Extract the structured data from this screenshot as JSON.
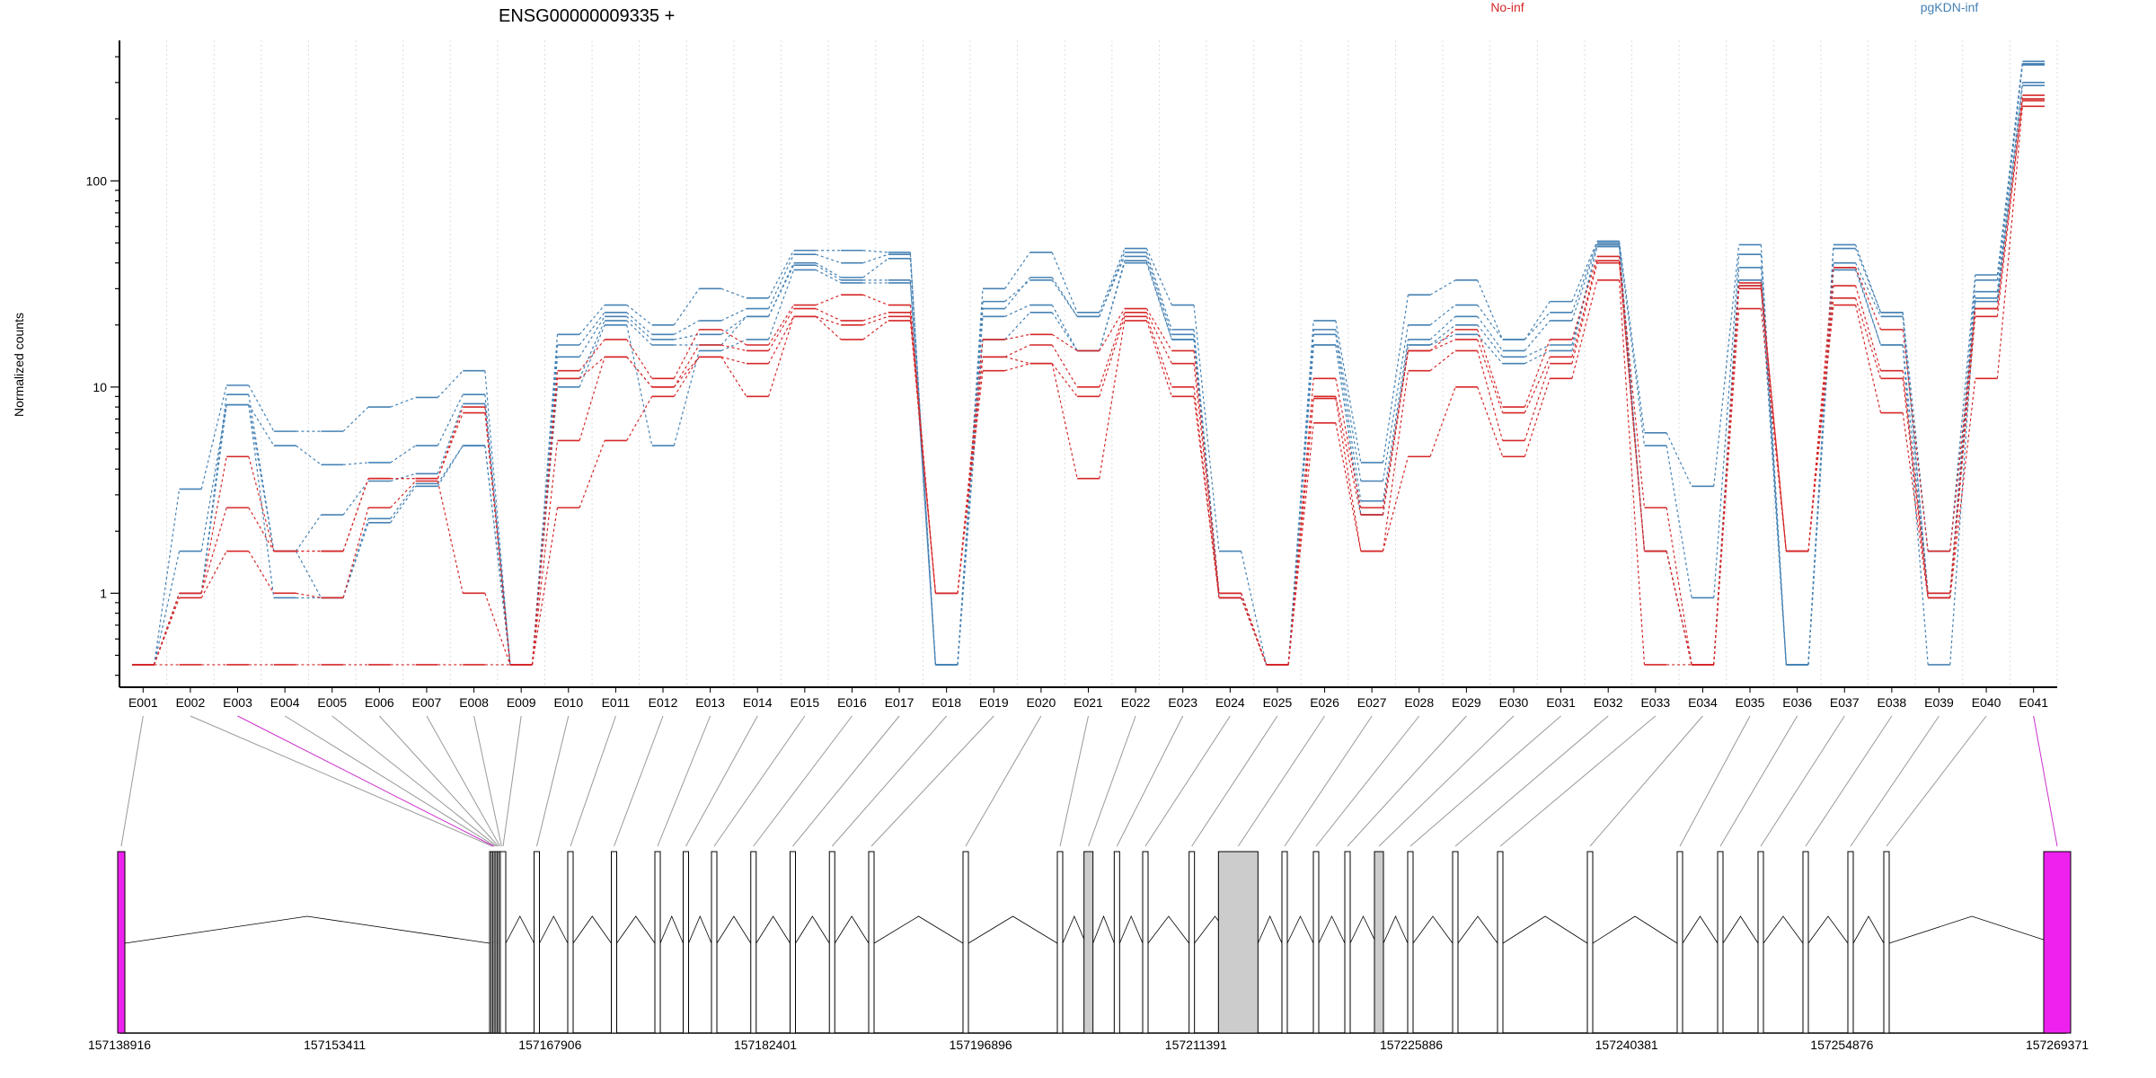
{
  "chart_data": {
    "type": "line",
    "title": "ENSG00000009335 +",
    "ylabel": "Normalized counts",
    "xlabel": "",
    "yscale": "log",
    "ylim": [
      0.35,
      480
    ],
    "yticks": [
      1,
      10,
      100
    ],
    "ytick_labels": [
      "1",
      "10",
      "100"
    ],
    "grid": "vertical dotted lines at exon boundaries",
    "legend": {
      "placement": "top",
      "entries": [
        {
          "label": "No-inf",
          "color": "#d62728"
        },
        {
          "label": "pgKDN-inf",
          "color": "#4682b4"
        }
      ]
    },
    "exons": [
      "E001",
      "E002",
      "E003",
      "E004",
      "E005",
      "E006",
      "E007",
      "E008",
      "E009",
      "E010",
      "E011",
      "E012",
      "E013",
      "E014",
      "E015",
      "E016",
      "E017",
      "E018",
      "E019",
      "E020",
      "E021",
      "E022",
      "E023",
      "E024",
      "E025",
      "E026",
      "E027",
      "E028",
      "E029",
      "E030",
      "E031",
      "E032",
      "E033",
      "E034",
      "E035",
      "E036",
      "E037",
      "E038",
      "E039",
      "E040",
      "E041"
    ],
    "series": [
      {
        "group": "pgKDN-inf",
        "color": "#4682b4",
        "values": [
          0.45,
          3.2,
          10.2,
          6.1,
          6.1,
          8.0,
          8.9,
          12,
          0.45,
          18,
          25,
          20,
          30,
          27,
          46,
          46,
          45,
          0.45,
          30,
          45,
          23,
          47,
          25,
          1.6,
          0.45,
          21,
          4.3,
          28,
          33,
          17,
          26,
          51,
          6.0,
          3.3,
          49,
          0.45,
          49,
          23,
          1.6,
          35,
          380
        ]
      },
      {
        "group": "pgKDN-inf",
        "color": "#4682b4",
        "values": [
          0.45,
          1.0,
          8.2,
          5.2,
          4.2,
          4.3,
          5.2,
          9.2,
          0.45,
          16,
          23,
          18,
          21,
          24,
          44,
          40,
          44,
          0.45,
          26,
          33,
          22,
          45,
          19,
          1.0,
          0.45,
          19,
          3.5,
          20,
          25,
          17,
          23,
          50,
          5.2,
          0.95,
          44,
          0.45,
          47,
          23,
          1.0,
          33,
          370
        ]
      },
      {
        "group": "pgKDN-inf",
        "color": "#4682b4",
        "values": [
          0.45,
          1.0,
          9.2,
          1.6,
          2.4,
          3.5,
          3.8,
          8.3,
          0.45,
          14,
          22,
          17,
          18,
          22,
          40,
          34,
          42,
          0.45,
          24,
          34,
          22,
          43,
          18,
          1.0,
          0.45,
          18,
          2.8,
          17,
          22,
          15,
          21,
          49,
          1.6,
          0.45,
          38,
          0.45,
          40,
          22,
          1.0,
          29,
          365
        ]
      },
      {
        "group": "pgKDN-inf",
        "color": "#4682b4",
        "values": [
          0.45,
          1.6,
          8.2,
          1.6,
          0.95,
          2.3,
          3.4,
          5.2,
          0.45,
          11,
          21,
          16,
          16,
          22,
          39,
          33,
          33,
          0.45,
          22,
          25,
          15,
          41,
          17,
          0.95,
          0.45,
          16,
          2.4,
          16,
          20,
          14,
          16,
          48,
          1.6,
          0.45,
          33,
          0.45,
          38,
          16,
          0.95,
          27,
          300
        ]
      },
      {
        "group": "pgKDN-inf",
        "color": "#4682b4",
        "values": [
          0.45,
          1.0,
          8.2,
          0.95,
          0.95,
          2.2,
          3.3,
          5.2,
          0.45,
          10,
          20,
          5.2,
          15,
          17,
          37,
          32,
          32,
          0.45,
          17,
          23,
          15,
          40,
          17,
          0.95,
          0.45,
          16,
          2.4,
          16,
          18,
          13,
          15,
          48,
          1.6,
          0.45,
          31,
          0.45,
          37,
          16,
          0.45,
          26,
          290
        ]
      },
      {
        "group": "No-inf",
        "color": "#d62728",
        "values": [
          0.45,
          1.0,
          4.6,
          1.6,
          1.6,
          3.6,
          3.6,
          8.0,
          0.45,
          12,
          17,
          11,
          19,
          16,
          25,
          28,
          25,
          1.0,
          17,
          18,
          15,
          24,
          15,
          1.0,
          0.45,
          11,
          2.6,
          15,
          19,
          8.0,
          17,
          43,
          2.6,
          0.45,
          32,
          1.6,
          38,
          19,
          1.6,
          24,
          260
        ]
      },
      {
        "group": "No-inf",
        "color": "#d62728",
        "values": [
          0.45,
          1.0,
          2.6,
          1.6,
          1.6,
          3.6,
          3.6,
          7.5,
          0.45,
          11,
          14,
          10,
          16,
          15,
          24,
          21,
          23,
          1.0,
          14,
          16,
          10,
          23,
          13,
          1.0,
          0.45,
          9.0,
          2.4,
          15,
          17,
          7.5,
          14,
          41,
          1.6,
          0.45,
          31,
          1.6,
          31,
          12,
          1.0,
          24,
          250
        ]
      },
      {
        "group": "No-inf",
        "color": "#d62728",
        "values": [
          0.45,
          0.95,
          1.6,
          1.0,
          0.95,
          2.6,
          3.5,
          1.0,
          0.45,
          5.5,
          14,
          10,
          14,
          13,
          22,
          20,
          22,
          1.0,
          14,
          13,
          9.0,
          22,
          10,
          0.95,
          0.45,
          8.8,
          1.6,
          12,
          15,
          5.5,
          13,
          40,
          1.6,
          0.45,
          30,
          1.6,
          27,
          11,
          0.95,
          22,
          245
        ]
      },
      {
        "group": "No-inf",
        "color": "#d62728",
        "values": [
          0.45,
          0.45,
          0.45,
          0.45,
          0.45,
          0.45,
          0.45,
          0.45,
          0.45,
          2.6,
          5.5,
          9.0,
          14,
          9.0,
          22,
          17,
          21,
          1.0,
          12,
          13,
          3.6,
          21,
          9.0,
          0.95,
          0.45,
          6.7,
          1.6,
          4.6,
          10,
          4.6,
          11,
          33,
          0.45,
          0.45,
          24,
          1.6,
          25,
          7.5,
          0.95,
          11,
          230
        ]
      }
    ],
    "gene_model": {
      "coordinates": [
        "157138916",
        "157153411",
        "157167906",
        "157182401",
        "157196896",
        "157211391",
        "157225886",
        "157240381",
        "157254876",
        "157269371"
      ],
      "exon_fill": [
        "magenta",
        "none",
        "none",
        "none",
        "none",
        "none",
        "none",
        "none",
        "none",
        "none",
        "none",
        "none",
        "none",
        "none",
        "none",
        "none",
        "none",
        "none",
        "none",
        "none",
        "none",
        "grey",
        "none",
        "none",
        "none",
        "grey",
        "none",
        "none",
        "none",
        "grey",
        "none",
        "none",
        "none",
        "none",
        "none",
        "none",
        "none",
        "none",
        "none",
        "none",
        "magenta"
      ]
    }
  }
}
